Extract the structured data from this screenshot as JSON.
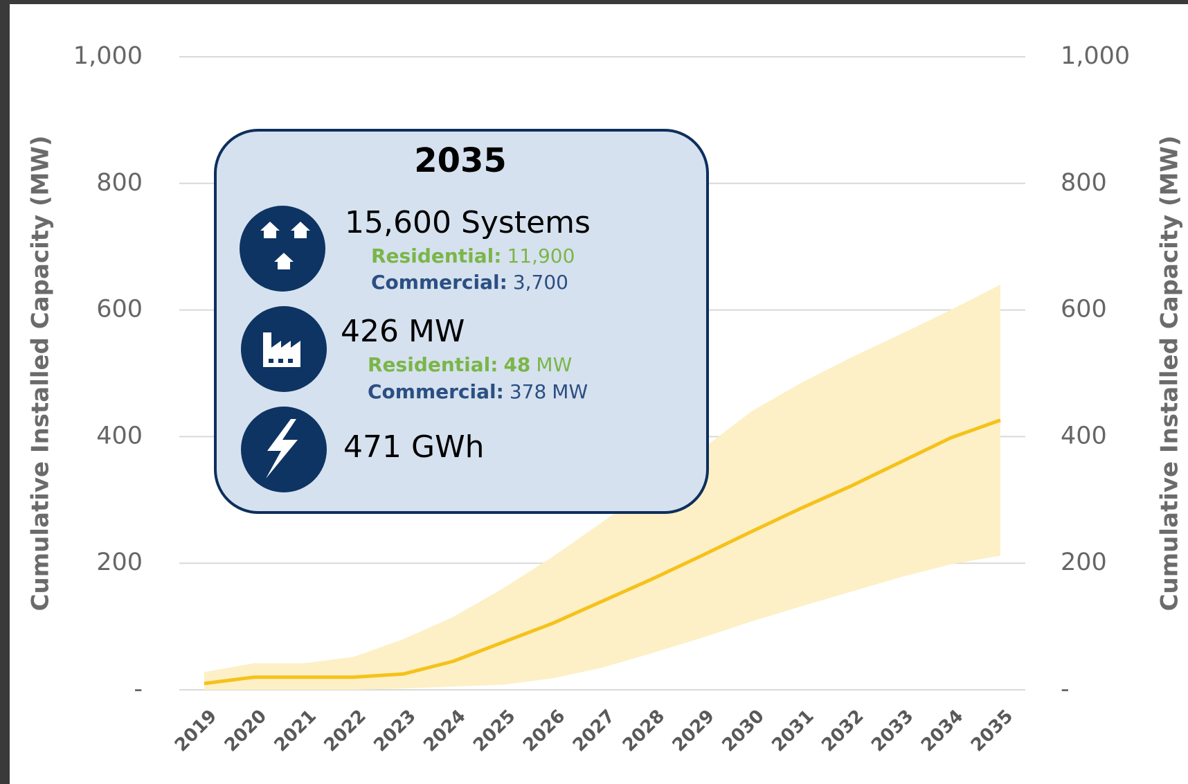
{
  "chart_data": {
    "type": "line",
    "categories": [
      "2019",
      "2020",
      "2021",
      "2022",
      "2023",
      "2024",
      "2025",
      "2026",
      "2027",
      "2028",
      "2029",
      "2030",
      "2031",
      "2032",
      "2033",
      "2034",
      "2035"
    ],
    "values": [
      10,
      20,
      20,
      20,
      25,
      45,
      75,
      105,
      140,
      175,
      212,
      250,
      287,
      322,
      360,
      398,
      426
    ],
    "color": "#f5c21b",
    "band": {
      "upper": [
        28,
        42,
        42,
        52,
        80,
        115,
        160,
        210,
        265,
        320,
        380,
        440,
        485,
        525,
        562,
        600,
        640
      ],
      "lower": [
        0,
        0,
        0,
        0,
        2,
        5,
        8,
        18,
        35,
        58,
        82,
        108,
        132,
        155,
        178,
        198,
        212
      ],
      "color": "#fdf0c6"
    },
    "ylim": [
      0,
      1000
    ],
    "yticks": [
      {
        "value": 0,
        "label": "-"
      },
      200,
      400,
      600,
      800,
      {
        "value": 1000,
        "label": "1,000"
      }
    ],
    "y2lim": [
      0,
      1000
    ],
    "y2ticks": [
      {
        "value": 0,
        "label": "-"
      },
      200,
      400,
      600,
      800,
      {
        "value": 1000,
        "label": "1,000"
      }
    ],
    "y_label": "Cumulative Installed Capacity (MW)",
    "y2_label": "Cumulative Installed Capacity (MW)",
    "grid": true,
    "callout": {
      "title": "2035",
      "items": [
        {
          "headline": "15,600 Systems",
          "rows": [
            {
              "label": "Residential:",
              "value": "11,900"
            },
            {
              "label": "Commercial:",
              "value": "3,700"
            }
          ]
        },
        {
          "headline": "426 MW",
          "rows": [
            {
              "label": "Residential:",
              "value": "48",
              "unit": "MW"
            },
            {
              "label": "Commercial:",
              "value": "378",
              "unit": "MW"
            }
          ]
        },
        {
          "headline": "471 GWh",
          "rows": []
        }
      ]
    }
  }
}
